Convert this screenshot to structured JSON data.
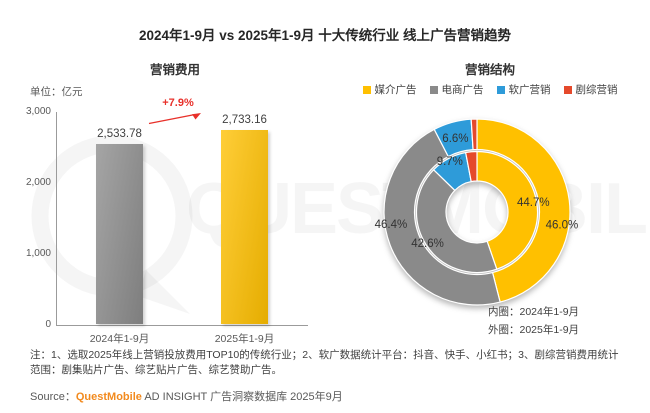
{
  "title": "2024年1-9月 vs 2025年1-9月 十大传统行业 线上广告营销趋势",
  "watermark": {
    "text": "QUESTMOBILE"
  },
  "left": {
    "subtitle": "营销费用",
    "unit_label": "单位：亿元",
    "growth_label": "+7.9%"
  },
  "right": {
    "subtitle": "营销结构",
    "ring_caption": [
      {
        "label": "内圈：2024年1-9月"
      },
      {
        "label": "外圈：2025年1-9月"
      }
    ]
  },
  "notes": "注：1、选取2025年线上营销投放费用TOP10的传统行业；2、软广数据统计平台：抖音、快手、小红书；3、剧综营销费用统计范围：剧集贴片广告、综艺贴片广告、综艺赞助广告。",
  "source": {
    "prefix": "Source：",
    "brand": "QuestMobile",
    "suffix": " AD INSIGHT 广告洞察数据库 2025年9月"
  },
  "colors": {
    "yellow": "#FFC000",
    "gray": "#8A8A8A",
    "blue": "#2E9BD9",
    "red": "#E5492B",
    "growth_red": "#E8302A",
    "brand_orange": "#F28A1E"
  },
  "chart_data": [
    {
      "type": "bar",
      "title": "营销费用",
      "unit": "亿元",
      "categories": [
        "2024年1-9月",
        "2025年1-9月"
      ],
      "values": [
        2533.78,
        2733.16
      ],
      "value_labels": [
        "2,533.78",
        "2,733.16"
      ],
      "bar_colors": [
        "#8C8C8C",
        "#FFC000"
      ],
      "growth_annotation": "+7.9%",
      "ylim": [
        0,
        3000
      ],
      "yticks": [
        {
          "v": 3000,
          "label": "3,000"
        },
        {
          "v": 2000,
          "label": "2,000"
        },
        {
          "v": 1000,
          "label": "1,000"
        },
        {
          "v": 0,
          "label": "0"
        }
      ],
      "grid": false,
      "legend_position": "none"
    },
    {
      "type": "donut",
      "title": "营销结构",
      "legend": [
        "媒介广告",
        "电商广告",
        "软广营销",
        "剧综营销"
      ],
      "legend_colors": [
        "#FFC000",
        "#8A8A8A",
        "#2E9BD9",
        "#E5492B"
      ],
      "legend_position": "top",
      "rings": [
        {
          "name": "内圈：2024年1-9月",
          "position": "inner",
          "values": [
            44.7,
            42.6,
            9.7,
            3.0
          ],
          "labels": [
            "44.7%",
            "42.6%",
            "9.7%",
            ""
          ]
        },
        {
          "name": "外圈：2025年1-9月",
          "position": "outer",
          "values": [
            46.0,
            46.4,
            6.6,
            1.0
          ],
          "labels": [
            "46.0%",
            "46.4%",
            "6.6%",
            ""
          ]
        }
      ]
    }
  ]
}
